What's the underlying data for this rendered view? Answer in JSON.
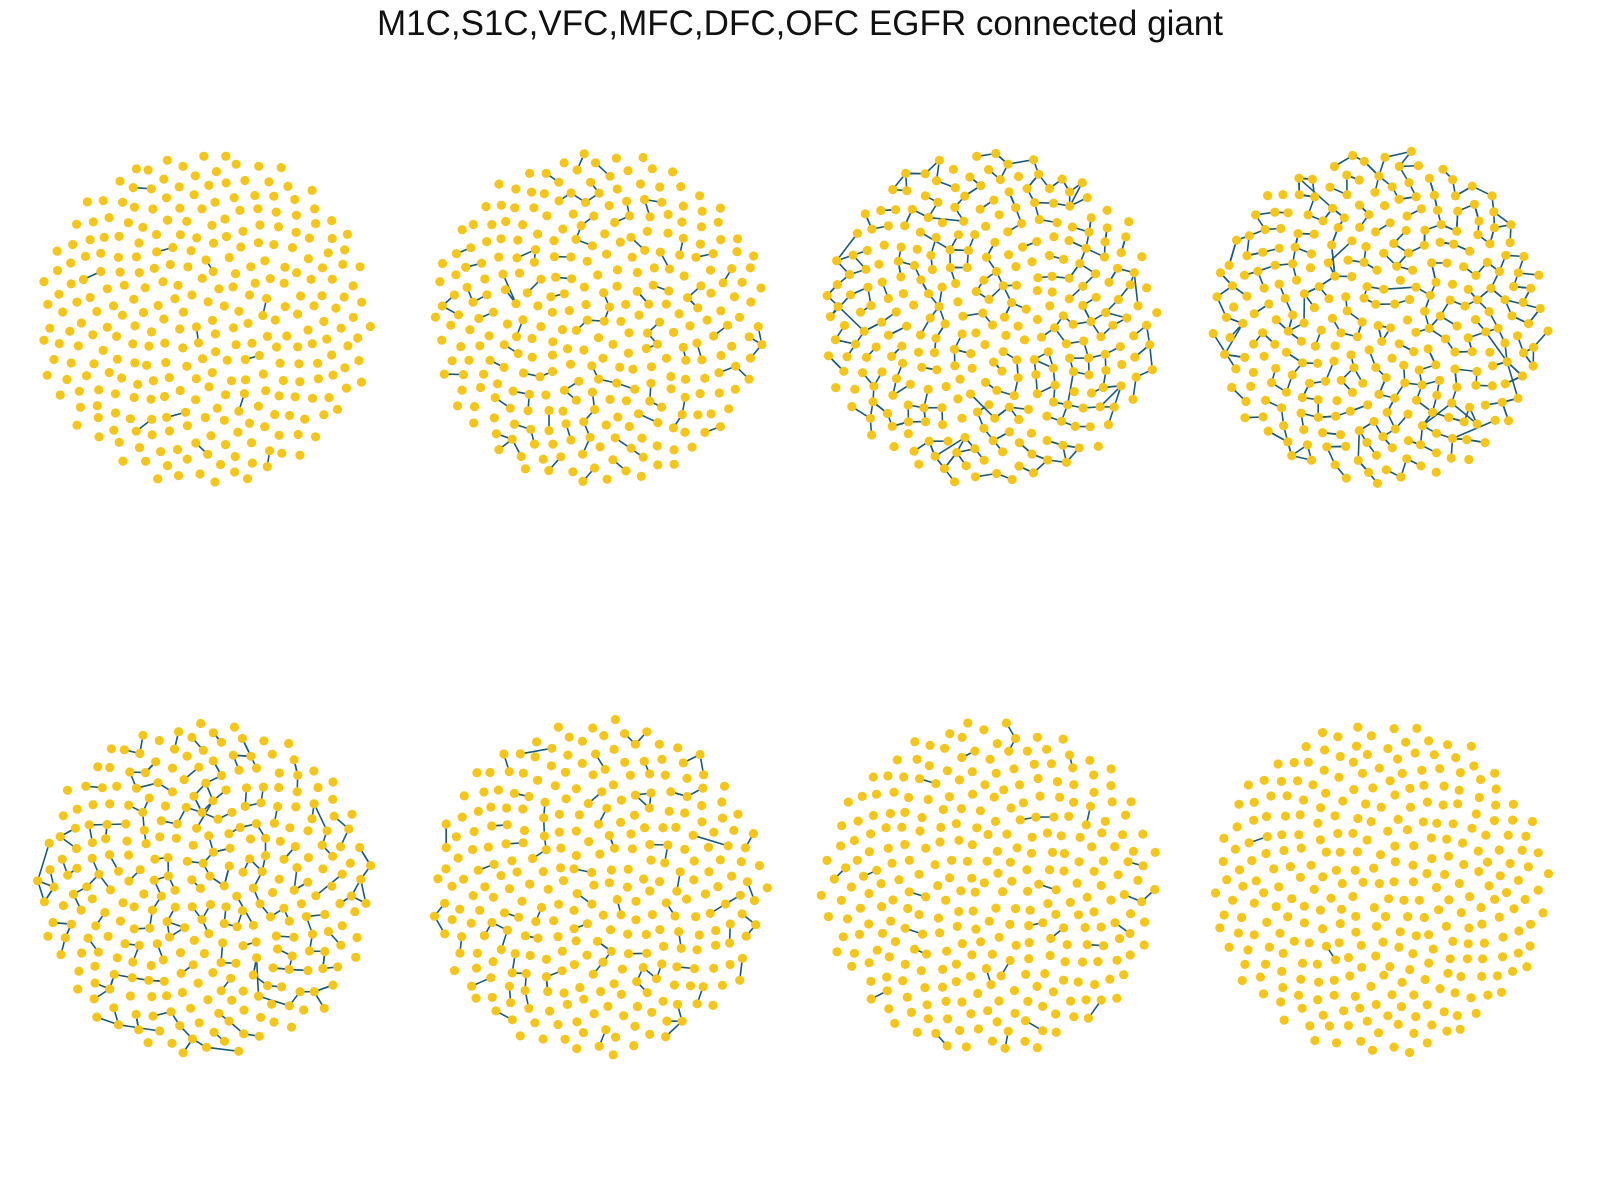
{
  "figure": {
    "title": "M1C,S1C,VFC,MFC,DFC,OFC EGFR connected giant"
  },
  "colors": {
    "node": "#f5c518",
    "edge": "#1b5a7a",
    "background": "#ffffff"
  },
  "chart_data": {
    "type": "network-panels",
    "rows": 2,
    "cols": 4,
    "nodes_per_panel": 300,
    "panels": [
      {
        "index": 1,
        "edge_density": 0.03,
        "giant_fraction": 0.0
      },
      {
        "index": 2,
        "edge_density": 0.28,
        "giant_fraction": 0.1
      },
      {
        "index": 3,
        "edge_density": 0.62,
        "giant_fraction": 0.55
      },
      {
        "index": 4,
        "edge_density": 0.72,
        "giant_fraction": 0.65
      },
      {
        "index": 5,
        "edge_density": 0.45,
        "giant_fraction": 0.35
      },
      {
        "index": 6,
        "edge_density": 0.22,
        "giant_fraction": 0.06
      },
      {
        "index": 7,
        "edge_density": 0.08,
        "giant_fraction": 0.0
      },
      {
        "index": 8,
        "edge_density": 0.01,
        "giant_fraction": 0.0
      }
    ]
  }
}
